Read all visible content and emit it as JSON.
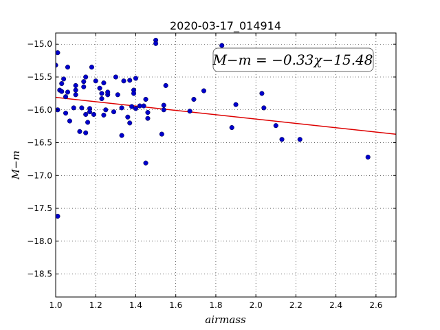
{
  "chart_data": {
    "type": "scatter",
    "title": "2020-03-17_014914",
    "xlabel": "airmass",
    "ylabel": "M−m",
    "xlim": [
      1.0,
      2.7
    ],
    "ylim": [
      -18.85,
      -14.83
    ],
    "ylim_note": "y axis printed with -15.0 at top and -18.5 at bottom",
    "x_ticks": [
      "1.0",
      "1.2",
      "1.4",
      "1.6",
      "1.8",
      "2.0",
      "2.2",
      "2.4",
      "2.6"
    ],
    "y_ticks": [
      "−15.0",
      "−15.5",
      "−16.0",
      "−16.5",
      "−17.0",
      "−17.5",
      "−18.0",
      "−18.5"
    ],
    "grid": true,
    "annotation": "M−m = −0.33χ−15.48",
    "point_color": "#0000cc",
    "fit_color": "#dd0000",
    "fit": {
      "slope": -0.33,
      "intercept": -15.48
    },
    "points": [
      [
        1.0,
        -15.32
      ],
      [
        1.01,
        -17.62
      ],
      [
        1.01,
        -15.13
      ],
      [
        1.01,
        -16.0
      ],
      [
        1.02,
        -15.7
      ],
      [
        1.03,
        -15.6
      ],
      [
        1.03,
        -15.72
      ],
      [
        1.04,
        -15.53
      ],
      [
        1.05,
        -15.8
      ],
      [
        1.05,
        -16.05
      ],
      [
        1.06,
        -15.35
      ],
      [
        1.06,
        -15.73
      ],
      [
        1.07,
        -16.17
      ],
      [
        1.09,
        -15.97
      ],
      [
        1.1,
        -15.63
      ],
      [
        1.1,
        -15.7
      ],
      [
        1.1,
        -15.77
      ],
      [
        1.12,
        -16.33
      ],
      [
        1.13,
        -15.97
      ],
      [
        1.14,
        -15.65
      ],
      [
        1.14,
        -15.57
      ],
      [
        1.15,
        -15.5
      ],
      [
        1.15,
        -16.07
      ],
      [
        1.15,
        -16.35
      ],
      [
        1.16,
        -16.19
      ],
      [
        1.17,
        -15.98
      ],
      [
        1.17,
        -16.03
      ],
      [
        1.18,
        -15.35
      ],
      [
        1.19,
        -16.07
      ],
      [
        1.2,
        -15.56
      ],
      [
        1.22,
        -15.67
      ],
      [
        1.23,
        -15.83
      ],
      [
        1.23,
        -15.75
      ],
      [
        1.24,
        -15.59
      ],
      [
        1.24,
        -16.08
      ],
      [
        1.25,
        -16.0
      ],
      [
        1.26,
        -15.77
      ],
      [
        1.26,
        -15.73
      ],
      [
        1.29,
        -16.03
      ],
      [
        1.3,
        -15.5
      ],
      [
        1.31,
        -15.77
      ],
      [
        1.33,
        -16.39
      ],
      [
        1.33,
        -15.97
      ],
      [
        1.34,
        -15.56
      ],
      [
        1.36,
        -16.11
      ],
      [
        1.37,
        -16.2
      ],
      [
        1.37,
        -15.55
      ],
      [
        1.38,
        -15.95
      ],
      [
        1.39,
        -15.7
      ],
      [
        1.39,
        -15.75
      ],
      [
        1.4,
        -15.52
      ],
      [
        1.4,
        -15.98
      ],
      [
        1.42,
        -15.94
      ],
      [
        1.44,
        -15.94
      ],
      [
        1.45,
        -16.81
      ],
      [
        1.45,
        -15.84
      ],
      [
        1.46,
        -16.13
      ],
      [
        1.46,
        -16.04
      ],
      [
        1.5,
        -14.94
      ],
      [
        1.5,
        -14.99
      ],
      [
        1.53,
        -16.37
      ],
      [
        1.54,
        -15.93
      ],
      [
        1.54,
        -16.0
      ],
      [
        1.55,
        -15.63
      ],
      [
        1.67,
        -16.02
      ],
      [
        1.69,
        -15.84
      ],
      [
        1.74,
        -15.71
      ],
      [
        1.83,
        -15.02
      ],
      [
        1.88,
        -16.27
      ],
      [
        1.9,
        -15.92
      ],
      [
        2.03,
        -15.75
      ],
      [
        2.04,
        -15.97
      ],
      [
        2.1,
        -16.24
      ],
      [
        2.13,
        -16.45
      ],
      [
        2.22,
        -16.45
      ],
      [
        2.56,
        -16.72
      ]
    ]
  }
}
